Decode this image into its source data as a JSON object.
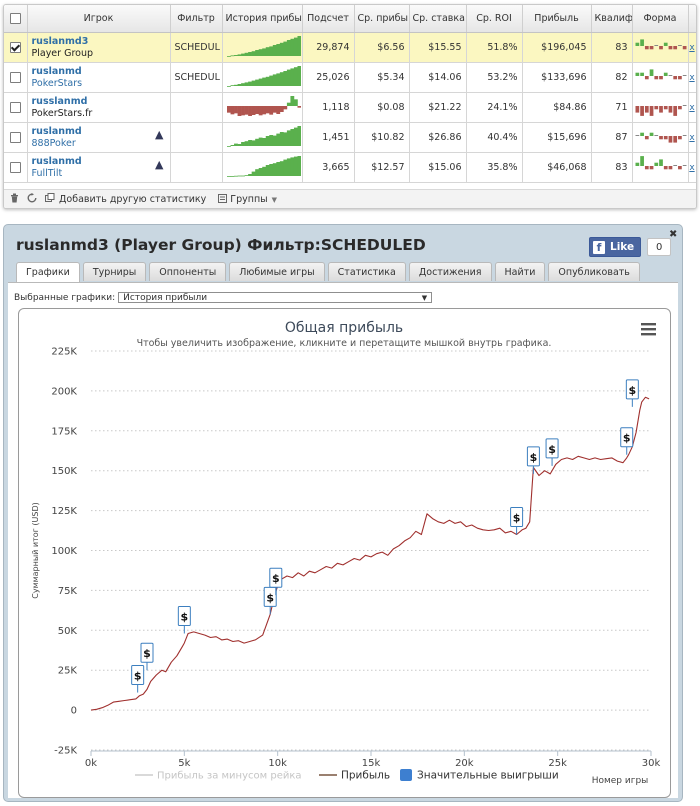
{
  "table": {
    "columns": [
      "Игрок",
      "Фильтр",
      "История прибы",
      "Подсчет",
      "Ср. прибы",
      "Ср. ставка",
      "Ср. ROI",
      "Прибыль",
      "Квалиф",
      "Форма"
    ],
    "rows": [
      {
        "name": "ruslanmd3",
        "site": "Player Group",
        "filter": "SCHEDUL",
        "count": "29,874",
        "avg_profit": "$6.56",
        "avg_stake": "$15.55",
        "roi": "51.8%",
        "profit": "$196,045",
        "qual": "83",
        "checked": true,
        "selected": true,
        "site_link": false,
        "shark": false,
        "history": [
          0,
          3,
          5,
          8,
          12,
          16,
          20,
          24,
          30,
          34,
          38,
          44,
          48,
          55,
          60,
          66,
          72,
          80,
          86,
          92,
          100
        ],
        "form": [
          1,
          2,
          -1,
          -1,
          0,
          -1,
          1,
          -1,
          -1,
          0,
          -1
        ]
      },
      {
        "name": "ruslanmd",
        "site": "PokerStars",
        "filter": "SCHEDUL",
        "count": "25,026",
        "avg_profit": "$5.34",
        "avg_stake": "$14.06",
        "roi": "53.2%",
        "profit": "$133,696",
        "qual": "82",
        "checked": false,
        "selected": false,
        "site_link": true,
        "shark": false,
        "history": [
          0,
          4,
          6,
          10,
          14,
          18,
          22,
          27,
          32,
          37,
          42,
          46,
          52,
          58,
          63,
          69,
          75,
          82,
          88,
          94,
          100
        ],
        "form": [
          1,
          1,
          -1,
          2,
          -1,
          -1,
          1,
          0,
          -1,
          -1,
          0
        ]
      },
      {
        "name": "russlanmd",
        "site": "PokerStars.fr",
        "filter": "",
        "count": "1,118",
        "avg_profit": "$0.08",
        "avg_stake": "$21.22",
        "roi": "24.1%",
        "profit": "$84.86",
        "qual": "71",
        "checked": false,
        "selected": false,
        "site_link": false,
        "shark": false,
        "history": [
          -20,
          -25,
          -22,
          -30,
          -28,
          -26,
          -30,
          -27,
          -24,
          -28,
          -25,
          -22,
          -26,
          -20,
          -24,
          -18,
          -10,
          10,
          30,
          20,
          -5
        ],
        "form": [
          -2,
          -3,
          -2,
          -3,
          -1,
          -2,
          -1,
          -2,
          -3,
          -1,
          0
        ]
      },
      {
        "name": "ruslanmd",
        "site": "888Poker",
        "filter": "",
        "count": "1,451",
        "avg_profit": "$10.82",
        "avg_stake": "$26.86",
        "roi": "40.4%",
        "profit": "$15,696",
        "qual": "87",
        "checked": false,
        "selected": false,
        "site_link": true,
        "shark": true,
        "history": [
          0,
          5,
          12,
          10,
          20,
          24,
          30,
          28,
          36,
          42,
          40,
          50,
          55,
          52,
          62,
          70,
          68,
          78,
          85,
          92,
          100
        ],
        "form": [
          0,
          1,
          -1,
          1,
          0,
          -1,
          -1,
          -2,
          -2,
          -1,
          0
        ]
      },
      {
        "name": "ruslanmd",
        "site": "FullTilt",
        "filter": "",
        "count": "3,665",
        "avg_profit": "$12.57",
        "avg_stake": "$15.06",
        "roi": "35.8%",
        "profit": "$46,068",
        "qual": "83",
        "checked": false,
        "selected": false,
        "site_link": true,
        "shark": true,
        "history": [
          0,
          0,
          1,
          2,
          2,
          4,
          10,
          22,
          34,
          40,
          46,
          55,
          60,
          64,
          70,
          74,
          82,
          88,
          93,
          97,
          100
        ],
        "form": [
          1,
          3,
          -1,
          -1,
          1,
          2,
          -1,
          -1,
          0,
          -1,
          0
        ]
      }
    ],
    "delete_label": "x"
  },
  "footer": {
    "add_stats_label": "Добавить другую статистику",
    "groups_label": "Группы"
  },
  "window": {
    "title": "ruslanmd3 (Player Group) Фильтр:SCHEDULED",
    "fb_like_label": "Like",
    "fb_like_count": "0",
    "tabs": [
      "Графики",
      "Турниры",
      "Оппоненты",
      "Любимые игры",
      "Статистика",
      "Достижения",
      "Найти",
      "Опубликовать"
    ],
    "active_tab": 0,
    "chart_select_label": "Выбранные графики:",
    "chart_select_value": "История прибыли"
  },
  "colors": {
    "accent": "#2f6fa7",
    "profit_line": "#a0302e",
    "highlight_row": "#fbf7c1",
    "spark_green": "#5ab04d",
    "spark_red": "#b0554f",
    "marker_border": "#3c7fbf"
  },
  "chart_data": {
    "type": "line",
    "title": "Общая прибыль",
    "subtitle": "Чтобы увеличить изображение, кликните и перетащите мышкой внутрь графика.",
    "ylabel": "Суммарный итог (USD)",
    "xlabel": "Номер игры",
    "xlim": [
      0,
      30000
    ],
    "ylim": [
      -25000,
      225000
    ],
    "x_ticks": [
      "0k",
      "5k",
      "10k",
      "15k",
      "20k",
      "25k",
      "30k"
    ],
    "y_ticks": [
      "-25K",
      "0",
      "25K",
      "50K",
      "75K",
      "100K",
      "125K",
      "150K",
      "175K",
      "200K",
      "225K"
    ],
    "legend": [
      "Прибыль за минусом рейка",
      "Прибыль",
      "Значительные выигрыши"
    ],
    "grid": true,
    "series": [
      {
        "name": "Прибыль",
        "x": [
          0,
          300,
          600,
          900,
          1200,
          1500,
          1800,
          2100,
          2400,
          2500,
          2600,
          2800,
          3000,
          3200,
          3500,
          3800,
          4000,
          4300,
          4600,
          4900,
          5000,
          5200,
          5500,
          5800,
          6100,
          6400,
          6700,
          7000,
          7300,
          7600,
          7900,
          8200,
          8500,
          8800,
          9200,
          9600,
          9800,
          10000,
          10200,
          10500,
          10800,
          11100,
          11400,
          11700,
          12000,
          12300,
          12600,
          12900,
          13200,
          13500,
          13800,
          14100,
          14400,
          14700,
          15000,
          15300,
          15600,
          15900,
          16200,
          16500,
          16800,
          17100,
          17400,
          17700,
          18000,
          18300,
          18600,
          18900,
          19200,
          19500,
          19800,
          20100,
          20400,
          20700,
          21000,
          21300,
          21600,
          21900,
          22200,
          22500,
          22800,
          23100,
          23300,
          23500,
          23700,
          24000,
          24300,
          24600,
          24900,
          25200,
          25500,
          25800,
          26100,
          26400,
          26700,
          27000,
          27300,
          27600,
          27900,
          28200,
          28500,
          28700,
          28800,
          29000,
          29200,
          29400,
          29500,
          29700,
          29900
        ],
        "y": [
          0,
          500,
          1500,
          3000,
          5000,
          5500,
          6000,
          6500,
          7000,
          8000,
          9000,
          10000,
          13000,
          18000,
          22000,
          25000,
          24000,
          30000,
          34000,
          40000,
          42000,
          48000,
          49000,
          48000,
          47000,
          45500,
          46000,
          44000,
          44500,
          43000,
          43500,
          42000,
          43000,
          44000,
          47000,
          60000,
          70000,
          78000,
          82000,
          84000,
          83000,
          86000,
          84000,
          87000,
          86000,
          88000,
          90000,
          89000,
          92000,
          91000,
          93000,
          95000,
          94000,
          97000,
          96000,
          98000,
          99000,
          97000,
          101000,
          103000,
          106000,
          108000,
          112000,
          110000,
          123000,
          120000,
          118000,
          117000,
          119000,
          117000,
          118000,
          115000,
          116000,
          114000,
          113000,
          112500,
          113000,
          114000,
          111000,
          112000,
          110000,
          113000,
          114000,
          118000,
          152000,
          147000,
          150000,
          148000,
          154000,
          157000,
          158000,
          157000,
          159000,
          158000,
          157000,
          158000,
          157000,
          157500,
          158000,
          156000,
          155000,
          158000,
          160000,
          165000,
          174000,
          188000,
          193000,
          196000,
          195000
        ]
      }
    ],
    "big_wins": [
      {
        "x": 2500,
        "y": 11000
      },
      {
        "x": 3000,
        "y": 25000
      },
      {
        "x": 5000,
        "y": 48000
      },
      {
        "x": 9600,
        "y": 60000
      },
      {
        "x": 9900,
        "y": 72000
      },
      {
        "x": 22800,
        "y": 110000
      },
      {
        "x": 23700,
        "y": 148000
      },
      {
        "x": 24700,
        "y": 153000
      },
      {
        "x": 28700,
        "y": 160000
      },
      {
        "x": 29000,
        "y": 190000
      }
    ],
    "marker_label": "$"
  }
}
